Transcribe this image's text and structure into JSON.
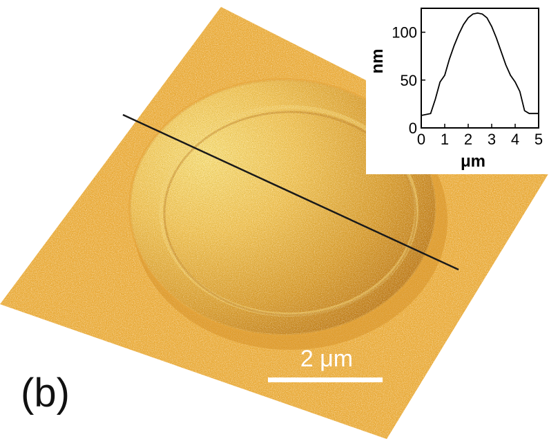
{
  "panel_label": "(b)",
  "scale_bar": {
    "label": "2 μm"
  },
  "colors": {
    "surface": "#efad3c",
    "surface_light": "#f7cf63",
    "surface_dark": "#c9801a",
    "line": "#1a1a1a"
  },
  "inset": {
    "chart_data": {
      "type": "line",
      "xlabel": "μm",
      "ylabel": "nm",
      "xlim": [
        0,
        5
      ],
      "ylim": [
        0,
        125
      ],
      "x_ticks": [
        "0",
        "1",
        "2",
        "3",
        "4",
        "5"
      ],
      "y_ticks": [
        "0",
        "50",
        "100"
      ],
      "grid": false,
      "series": [
        {
          "x": [
            0,
            0.4,
            0.6,
            0.8,
            1.0,
            1.2,
            1.4,
            1.6,
            1.8,
            2.0,
            2.2,
            2.4,
            2.6,
            2.8,
            3.0,
            3.2,
            3.4,
            3.6,
            3.8,
            4.0,
            4.2,
            4.4,
            4.6,
            5.0
          ],
          "y": [
            13,
            15,
            30,
            48,
            55,
            72,
            86,
            98,
            108,
            115,
            119,
            120,
            119,
            115,
            106,
            94,
            80,
            66,
            55,
            48,
            38,
            18,
            15,
            15
          ]
        }
      ]
    }
  }
}
